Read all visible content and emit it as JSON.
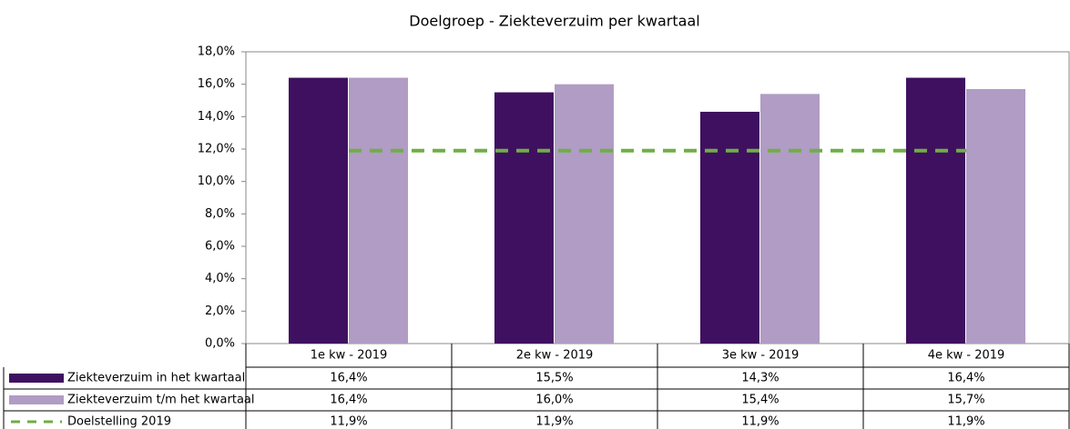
{
  "chart_data": {
    "type": "bar",
    "title": "Doelgroep - Ziekteverzuim per kwartaal",
    "categories": [
      "1e kw - 2019",
      "2e kw - 2019",
      "3e kw - 2019",
      "4e kw - 2019"
    ],
    "series": [
      {
        "name": "Ziekteverzuim in het kwartaal",
        "color": "#3f1060",
        "type": "bar",
        "values": [
          16.4,
          15.5,
          14.3,
          16.4
        ],
        "value_labels": [
          "16,4%",
          "15,5%",
          "14,3%",
          "16,4%"
        ]
      },
      {
        "name": "Ziekteverzuim t/m het kwartaal",
        "color": "#b09cc4",
        "type": "bar",
        "values": [
          16.4,
          16.0,
          15.4,
          15.7
        ],
        "value_labels": [
          "16,4%",
          "16,0%",
          "15,4%",
          "15,7%"
        ]
      },
      {
        "name": "Doelstelling 2019",
        "color": "#70ad47",
        "type": "line",
        "dashed": true,
        "values": [
          11.9,
          11.9,
          11.9,
          11.9
        ],
        "value_labels": [
          "11,9%",
          "11,9%",
          "11,9%",
          "11,9%"
        ]
      }
    ],
    "ylim": [
      0,
      18
    ],
    "yticks": [
      {
        "value": 0,
        "label": "0,0%"
      },
      {
        "value": 2,
        "label": "2,0%"
      },
      {
        "value": 4,
        "label": "4,0%"
      },
      {
        "value": 6,
        "label": "6,0%"
      },
      {
        "value": 8,
        "label": "8,0%"
      },
      {
        "value": 10,
        "label": "10,0%"
      },
      {
        "value": 12,
        "label": "12,0%"
      },
      {
        "value": 14,
        "label": "14,0%"
      },
      {
        "value": 16,
        "label": "16,0%"
      },
      {
        "value": 18,
        "label": "18,0%"
      }
    ],
    "grid": false,
    "data_table": true
  }
}
